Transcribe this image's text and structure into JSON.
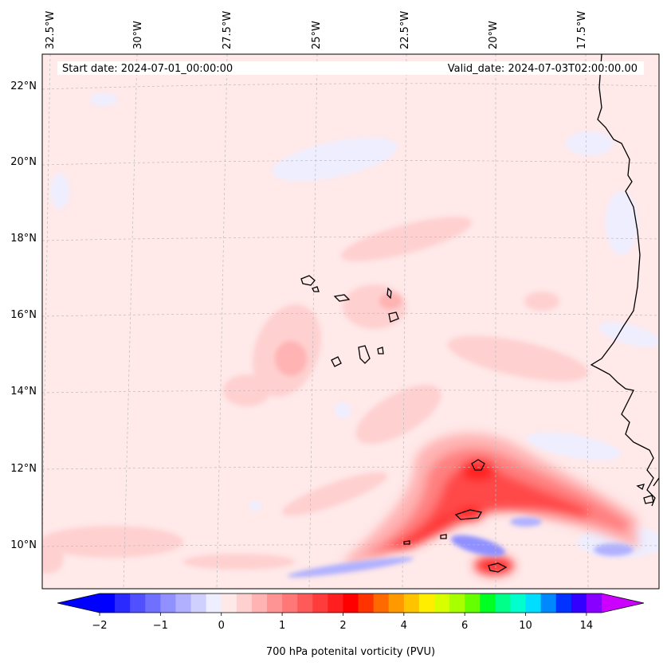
{
  "map": {
    "start_label": "Start date: 2024-07-01_00:00:00",
    "valid_label": "Valid_date: 2024-07-03T02:00:00.00",
    "top_lon_labels": [
      "32.5°W",
      "30°W",
      "27.5°W",
      "25°W",
      "22.5°W",
      "20°W",
      "17.5°W"
    ],
    "left_lat_labels": [
      "22°N",
      "20°N",
      "18°N",
      "16°N",
      "14°N",
      "12°N",
      "10°N"
    ],
    "lat_range": [
      8.9,
      22.8
    ],
    "lon_range": [
      -33.0,
      -15.4
    ]
  },
  "colorbar": {
    "title": "700 hPa potenital vorticity (PVU)",
    "tick_labels": [
      "−2",
      "−1",
      "0",
      "1",
      "2",
      "4",
      "6",
      "10",
      "14"
    ],
    "colors": [
      "#0000ff",
      "#2a2aff",
      "#5050ff",
      "#7070ff",
      "#9090ff",
      "#b0b0ff",
      "#d0d0ff",
      "#eeeeff",
      "#ffe8e8",
      "#ffd0d0",
      "#ffb3b3",
      "#ff9494",
      "#ff7777",
      "#ff5a5a",
      "#ff3c3c",
      "#ff1f1f",
      "#ff0000",
      "#ff3300",
      "#ff6a00",
      "#ff9900",
      "#ffc300",
      "#ffee00",
      "#d8ff00",
      "#a8ff00",
      "#66ff00",
      "#00ff22",
      "#00ff88",
      "#00ffcc",
      "#00ddff",
      "#0088ff",
      "#0033ff",
      "#3300ff",
      "#8800ff"
    ],
    "under_color": "#0000ff",
    "over_color": "#cc00ff"
  },
  "colors": {
    "background": "#ffe9e9",
    "coast": "#000000"
  }
}
